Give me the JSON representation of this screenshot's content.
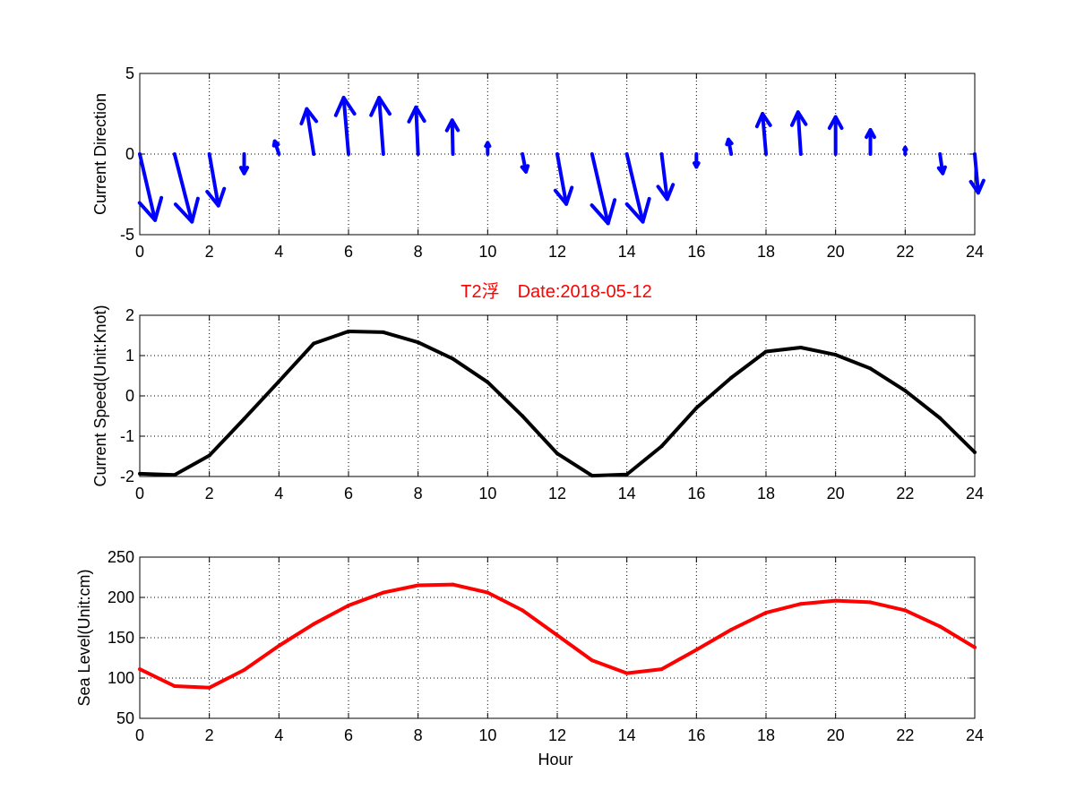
{
  "colors": {
    "arrow": "#0000ff",
    "speed_line": "#000000",
    "sea_line": "#ff0000",
    "title": "#ff0000"
  },
  "chart_data": [
    {
      "id": "direction",
      "type": "quiver",
      "ylabel": "Current Direction",
      "xlabel": "",
      "xlim": [
        0,
        24
      ],
      "ylim": [
        -5,
        5
      ],
      "xticks": [
        0,
        2,
        4,
        6,
        8,
        10,
        12,
        14,
        16,
        18,
        20,
        22,
        24
      ],
      "yticks": [
        -5,
        0,
        5
      ],
      "grid": true,
      "vectors": [
        {
          "x": 0,
          "u": 0.44,
          "v": -4.1
        },
        {
          "x": 1,
          "u": 0.5,
          "v": -4.2
        },
        {
          "x": 2,
          "u": 0.26,
          "v": -3.2
        },
        {
          "x": 3,
          "u": 0.0,
          "v": -1.2
        },
        {
          "x": 4,
          "u": -0.12,
          "v": 0.8
        },
        {
          "x": 5,
          "u": -0.2,
          "v": 2.8
        },
        {
          "x": 6,
          "u": -0.14,
          "v": 3.5
        },
        {
          "x": 7,
          "u": -0.12,
          "v": 3.5
        },
        {
          "x": 8,
          "u": -0.06,
          "v": 2.9
        },
        {
          "x": 9,
          "u": -0.02,
          "v": 2.1
        },
        {
          "x": 10,
          "u": 0.0,
          "v": 0.7
        },
        {
          "x": 11,
          "u": 0.1,
          "v": -1.1
        },
        {
          "x": 12,
          "u": 0.26,
          "v": -3.1
        },
        {
          "x": 13,
          "u": 0.46,
          "v": -4.3
        },
        {
          "x": 14,
          "u": 0.46,
          "v": -4.2
        },
        {
          "x": 15,
          "u": 0.16,
          "v": -2.8
        },
        {
          "x": 16,
          "u": 0.0,
          "v": -0.8
        },
        {
          "x": 17,
          "u": -0.08,
          "v": 0.9
        },
        {
          "x": 18,
          "u": -0.1,
          "v": 2.5
        },
        {
          "x": 19,
          "u": -0.08,
          "v": 2.6
        },
        {
          "x": 20,
          "u": 0.0,
          "v": 2.3
        },
        {
          "x": 21,
          "u": 0.0,
          "v": 1.5
        },
        {
          "x": 22,
          "u": 0.0,
          "v": 0.4
        },
        {
          "x": 23,
          "u": 0.08,
          "v": -1.2
        },
        {
          "x": 24,
          "u": 0.1,
          "v": -2.4
        }
      ]
    },
    {
      "id": "speed",
      "type": "line",
      "title": "T2浮　Date:2018-05-12",
      "ylabel": "Current Speed(Unit:Knot)",
      "xlabel": "",
      "xlim": [
        0,
        24
      ],
      "ylim": [
        -2,
        2
      ],
      "xticks": [
        0,
        2,
        4,
        6,
        8,
        10,
        12,
        14,
        16,
        18,
        20,
        22,
        24
      ],
      "yticks": [
        -2,
        -1,
        0,
        1,
        2
      ],
      "grid": true,
      "x": [
        0,
        1,
        2,
        3,
        4,
        5,
        6,
        7,
        8,
        9,
        10,
        11,
        12,
        13,
        14,
        15,
        16,
        17,
        18,
        19,
        20,
        21,
        22,
        23,
        24
      ],
      "values": [
        -1.93,
        -1.96,
        -1.48,
        -0.57,
        0.36,
        1.3,
        1.6,
        1.58,
        1.33,
        0.92,
        0.34,
        -0.5,
        -1.43,
        -1.98,
        -1.95,
        -1.25,
        -0.3,
        0.45,
        1.1,
        1.2,
        1.02,
        0.68,
        0.13,
        -0.55,
        -1.4
      ]
    },
    {
      "id": "sealevel",
      "type": "line",
      "ylabel": "Sea Level(Unit:cm)",
      "xlabel": "Hour",
      "xlim": [
        0,
        24
      ],
      "ylim": [
        50,
        250
      ],
      "xticks": [
        0,
        2,
        4,
        6,
        8,
        10,
        12,
        14,
        16,
        18,
        20,
        22,
        24
      ],
      "yticks": [
        50,
        100,
        150,
        200,
        250
      ],
      "grid": true,
      "x": [
        0,
        1,
        2,
        3,
        4,
        5,
        6,
        7,
        8,
        9,
        10,
        11,
        12,
        13,
        14,
        15,
        16,
        17,
        18,
        19,
        20,
        21,
        22,
        23,
        24
      ],
      "values": [
        111,
        90,
        88,
        110,
        140,
        167,
        190,
        206,
        215,
        216,
        206,
        184,
        153,
        122,
        106,
        111,
        135,
        160,
        181,
        192,
        196,
        194,
        184,
        164,
        138
      ]
    }
  ]
}
